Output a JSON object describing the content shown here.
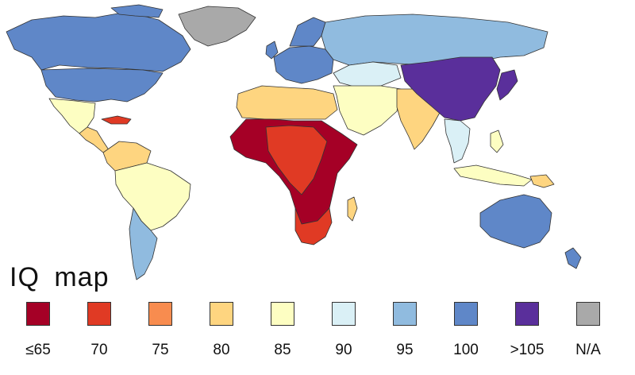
{
  "map": {
    "title": "IQ map",
    "legend": [
      {
        "label": "≤65",
        "color": "#a50026"
      },
      {
        "label": "70",
        "color": "#e03a24"
      },
      {
        "label": "75",
        "color": "#f88c4f"
      },
      {
        "label": "80",
        "color": "#fed580"
      },
      {
        "label": "85",
        "color": "#fdfec2"
      },
      {
        "label": "90",
        "color": "#daf0f6"
      },
      {
        "label": "95",
        "color": "#90bbdf"
      },
      {
        "label": "100",
        "color": "#5f87c8"
      },
      {
        "label": ">105",
        "color": "#5a2f9b"
      },
      {
        "label": "N/A",
        "color": "#a9a9a9"
      }
    ]
  }
}
